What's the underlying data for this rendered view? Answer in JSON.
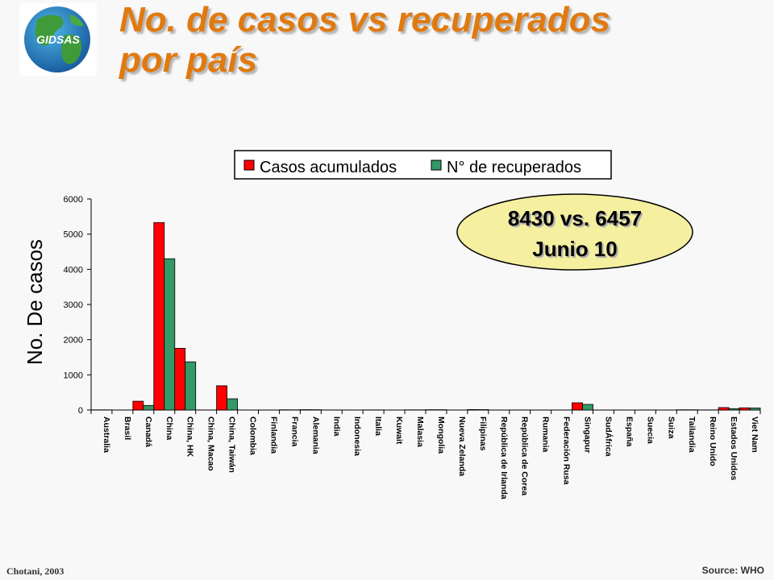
{
  "logo": {
    "text": "GIDSAS"
  },
  "title": {
    "line1": "No. de casos vs recuperados",
    "line2": "por país"
  },
  "footer": {
    "left": "Chotani, 2003",
    "right": "Source: WHO"
  },
  "callout": {
    "line1": "8430 vs. 6457",
    "line2": "Junio 10",
    "fill": "#f5f0a0"
  },
  "chart_data": {
    "type": "bar",
    "ylabel": "No. De casos",
    "xlabel": "",
    "ylim": [
      0,
      6000
    ],
    "yticks": [
      0,
      1000,
      2000,
      3000,
      4000,
      5000,
      6000
    ],
    "grid": false,
    "legend_position": "top-center",
    "categories": [
      "Australia",
      "Brasil",
      "Canadá",
      "China",
      "China, HK",
      "China, Macao",
      "China, Taiwán",
      "Colombia",
      "Finlandia",
      "Francia",
      "Alemania",
      "India",
      "Indonesia",
      "Italia",
      "Kuwait",
      "Malasia",
      "Mongolia",
      "Nueva Zelanda",
      "Filipinas",
      "República de Irlanda",
      "República de Corea",
      "Rumania",
      "Federación Rusa",
      "Singapur",
      "SudÁfrica",
      "España",
      "Suecia",
      "Suiza",
      "Tailandia",
      "Reino Unido",
      "Estados Unidos",
      "Viet Nam"
    ],
    "series": [
      {
        "name": "Casos acumulados",
        "color": "#ff0000",
        "values": [
          5,
          1,
          250,
          5330,
          1755,
          1,
          690,
          1,
          1,
          7,
          10,
          3,
          2,
          4,
          1,
          5,
          9,
          1,
          14,
          1,
          3,
          1,
          1,
          206,
          1,
          1,
          3,
          1,
          8,
          4,
          70,
          63
        ]
      },
      {
        "name": "N° de recuperados",
        "color": "#339966",
        "values": [
          5,
          1,
          130,
          4300,
          1370,
          1,
          320,
          1,
          1,
          6,
          9,
          3,
          2,
          4,
          1,
          5,
          9,
          1,
          12,
          1,
          3,
          1,
          1,
          160,
          1,
          1,
          3,
          1,
          7,
          4,
          40,
          58
        ]
      }
    ]
  }
}
